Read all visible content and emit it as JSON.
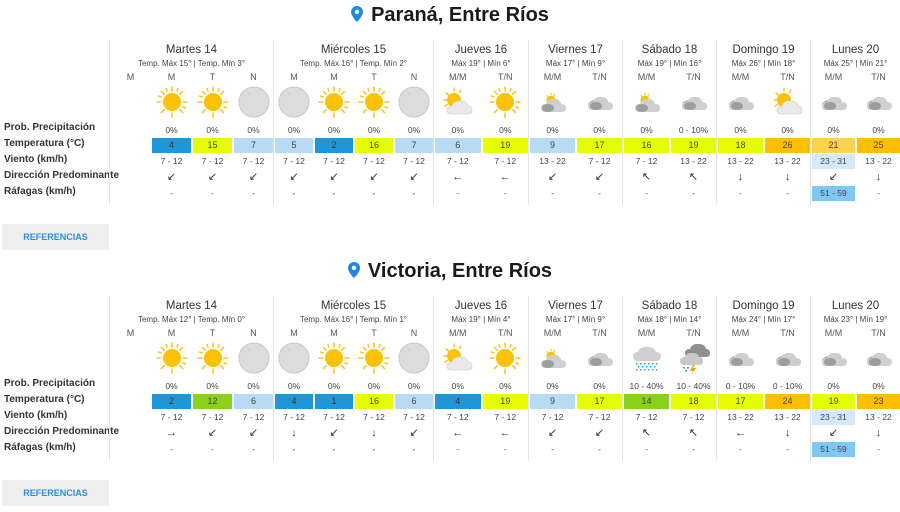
{
  "colors": {
    "pin": "#1e88e5",
    "temp_cold": "#1d97da",
    "temp_cool": "#b6dbf3",
    "temp_mild": "#e5ff00",
    "temp_green": "#8ad11b",
    "temp_warm": "#ffbe00",
    "temp_warm_light": "#ffd24d",
    "gust_bg": "#7fc8f5",
    "wind_high_bg": "#d6e9f8",
    "button_bg": "#efefef",
    "button_text": "#2a8fd6"
  },
  "labels": {
    "prob": "Prob. Precipitación",
    "temp": "Temperatura (°C)",
    "wind": "Viento (km/h)",
    "dir": "Dirección Predominante",
    "gust": "Ráfagas (km/h)"
  },
  "references_button": "REFERENCIAS",
  "cities": [
    {
      "title": "Paraná, Entre Ríos",
      "days": [
        {
          "name": "Martes 14",
          "sub": "Temp. Máx 15° | Temp. Mín 3°",
          "cols": [
            {
              "period": "M",
              "icon": "none",
              "prob": "",
              "temp": "",
              "wind": "",
              "dir": "",
              "gust": ""
            },
            {
              "period": "M",
              "icon": "sun",
              "prob": "0%",
              "temp": "4",
              "temp_color": "#1d97da",
              "wind": "7 - 12",
              "dir": "↙",
              "gust": "-"
            },
            {
              "period": "T",
              "icon": "sun",
              "prob": "0%",
              "temp": "15",
              "temp_color": "#e5ff00",
              "wind": "7 - 12",
              "dir": "↙",
              "gust": "-"
            },
            {
              "period": "N",
              "icon": "moon",
              "prob": "0%",
              "temp": "7",
              "temp_color": "#b6dbf3",
              "wind": "7 - 12",
              "dir": "↙",
              "gust": "-"
            }
          ]
        },
        {
          "name": "Miércoles 15",
          "sub": "Temp. Máx 16° | Temp. Mín 2°",
          "cols": [
            {
              "period": "M",
              "icon": "moon",
              "prob": "0%",
              "temp": "5",
              "temp_color": "#b6dbf3",
              "wind": "7 - 12",
              "dir": "↙",
              "gust": "-"
            },
            {
              "period": "M",
              "icon": "sun",
              "prob": "0%",
              "temp": "2",
              "temp_color": "#1d97da",
              "wind": "7 - 12",
              "dir": "↙",
              "gust": "-"
            },
            {
              "period": "T",
              "icon": "sun",
              "prob": "0%",
              "temp": "16",
              "temp_color": "#e5ff00",
              "wind": "7 - 12",
              "dir": "↙",
              "gust": "-"
            },
            {
              "period": "N",
              "icon": "moon",
              "prob": "0%",
              "temp": "7",
              "temp_color": "#b6dbf3",
              "wind": "7 - 12",
              "dir": "↙",
              "gust": "-"
            }
          ]
        },
        {
          "name": "Jueves 16",
          "sub": "Máx 19° | Mín 6°",
          "cols": [
            {
              "period": "M/M",
              "icon": "sun-cloud-light",
              "prob": "0%",
              "temp": "6",
              "temp_color": "#b6dbf3",
              "wind": "7 - 12",
              "dir": "←",
              "gust": "-"
            },
            {
              "period": "T/N",
              "icon": "sun",
              "prob": "0%",
              "temp": "19",
              "temp_color": "#e5ff00",
              "wind": "7 - 12",
              "dir": "←",
              "gust": "-"
            }
          ]
        },
        {
          "name": "Viernes 17",
          "sub": "Máx 17° | Mín 9°",
          "cols": [
            {
              "period": "M/M",
              "icon": "sun-cloud-dark",
              "prob": "0%",
              "temp": "9",
              "temp_color": "#b6dbf3",
              "wind": "13 - 22",
              "dir": "↙",
              "gust": "-"
            },
            {
              "period": "T/N",
              "icon": "cloud",
              "prob": "0%",
              "temp": "17",
              "temp_color": "#e5ff00",
              "wind": "7 - 12",
              "dir": "↙",
              "gust": "-"
            }
          ]
        },
        {
          "name": "Sábado 18",
          "sub": "Máx 19° | Mín 16°",
          "cols": [
            {
              "period": "M/M",
              "icon": "sun-cloud-dark",
              "prob": "0%",
              "temp": "16",
              "temp_color": "#e5ff00",
              "wind": "7 - 12",
              "dir": "↖",
              "gust": "-"
            },
            {
              "period": "T/N",
              "icon": "cloud",
              "prob": "0 - 10%",
              "temp": "19",
              "temp_color": "#e5ff00",
              "wind": "13 - 22",
              "dir": "↖",
              "gust": "-"
            }
          ]
        },
        {
          "name": "Domingo 19",
          "sub": "Máx 26° | Mín 18°",
          "cols": [
            {
              "period": "M/M",
              "icon": "cloud",
              "prob": "0%",
              "temp": "18",
              "temp_color": "#e5ff00",
              "wind": "13 - 22",
              "dir": "↓",
              "gust": "-"
            },
            {
              "period": "T/N",
              "icon": "sun-cloud-light",
              "prob": "0%",
              "temp": "26",
              "temp_color": "#ffbe00",
              "wind": "13 - 22",
              "dir": "↓",
              "gust": "-"
            }
          ]
        },
        {
          "name": "Lunes 20",
          "sub": "Máx 25° | Mín 21°",
          "cols": [
            {
              "period": "M/M",
              "icon": "cloud",
              "prob": "0%",
              "temp": "21",
              "temp_color": "#ffd24d",
              "wind": "23 - 31",
              "wind_bg": "#d6e9f8",
              "dir": "↙",
              "gust": "51 - 59",
              "gust_bg": "#7fc8f5"
            },
            {
              "period": "T/N",
              "icon": "cloud",
              "prob": "0%",
              "temp": "25",
              "temp_color": "#ffbe00",
              "wind": "13 - 22",
              "dir": "↓",
              "gust": "-"
            }
          ]
        }
      ]
    },
    {
      "title": "Victoria, Entre Ríos",
      "days": [
        {
          "name": "Martes 14",
          "sub": "Temp. Máx 12° | Temp. Mín 0°",
          "cols": [
            {
              "period": "M",
              "icon": "none",
              "prob": "",
              "temp": "",
              "wind": "",
              "dir": "",
              "gust": ""
            },
            {
              "period": "M",
              "icon": "sun",
              "prob": "0%",
              "temp": "2",
              "temp_color": "#1d97da",
              "wind": "7 - 12",
              "dir": "→",
              "gust": "-"
            },
            {
              "period": "T",
              "icon": "sun",
              "prob": "0%",
              "temp": "12",
              "temp_color": "#8ad11b",
              "wind": "7 - 12",
              "dir": "↙",
              "gust": "-"
            },
            {
              "period": "N",
              "icon": "moon",
              "prob": "0%",
              "temp": "6",
              "temp_color": "#b6dbf3",
              "wind": "7 - 12",
              "dir": "↙",
              "gust": "-"
            }
          ]
        },
        {
          "name": "Miércoles 15",
          "sub": "Temp. Máx 16° | Temp. Mín 1°",
          "cols": [
            {
              "period": "M",
              "icon": "moon",
              "prob": "0%",
              "temp": "4",
              "temp_color": "#1d97da",
              "wind": "7 - 12",
              "dir": "↓",
              "gust": "-"
            },
            {
              "period": "M",
              "icon": "sun",
              "prob": "0%",
              "temp": "1",
              "temp_color": "#1d97da",
              "wind": "7 - 12",
              "dir": "↙",
              "gust": "-"
            },
            {
              "period": "T",
              "icon": "sun",
              "prob": "0%",
              "temp": "16",
              "temp_color": "#e5ff00",
              "wind": "7 - 12",
              "dir": "↓",
              "gust": "-"
            },
            {
              "period": "N",
              "icon": "moon",
              "prob": "0%",
              "temp": "6",
              "temp_color": "#b6dbf3",
              "wind": "7 - 12",
              "dir": "↙",
              "gust": "-"
            }
          ]
        },
        {
          "name": "Jueves 16",
          "sub": "Máx 19° | Mín 4°",
          "cols": [
            {
              "period": "M/M",
              "icon": "sun-cloud-light",
              "prob": "0%",
              "temp": "4",
              "temp_color": "#1d97da",
              "wind": "7 - 12",
              "dir": "←",
              "gust": "-"
            },
            {
              "period": "T/N",
              "icon": "sun",
              "prob": "0%",
              "temp": "19",
              "temp_color": "#e5ff00",
              "wind": "7 - 12",
              "dir": "←",
              "gust": "-"
            }
          ]
        },
        {
          "name": "Viernes 17",
          "sub": "Máx 17° | Mín 9°",
          "cols": [
            {
              "period": "M/M",
              "icon": "sun-cloud-dark",
              "prob": "0%",
              "temp": "9",
              "temp_color": "#b6dbf3",
              "wind": "7 - 12",
              "dir": "↙",
              "gust": "-"
            },
            {
              "period": "T/N",
              "icon": "cloud",
              "prob": "0%",
              "temp": "17",
              "temp_color": "#e5ff00",
              "wind": "7 - 12",
              "dir": "↙",
              "gust": "-"
            }
          ]
        },
        {
          "name": "Sábado 18",
          "sub": "Máx 18° | Mín 14°",
          "cols": [
            {
              "period": "M/M",
              "icon": "rain",
              "prob": "10 - 40%",
              "temp": "14",
              "temp_color": "#8ad11b",
              "wind": "7 - 12",
              "dir": "↖",
              "gust": "-"
            },
            {
              "period": "T/N",
              "icon": "storm",
              "prob": "10 - 40%",
              "temp": "18",
              "temp_color": "#e5ff00",
              "wind": "7 - 12",
              "dir": "↖",
              "gust": "-"
            }
          ]
        },
        {
          "name": "Domingo 19",
          "sub": "Máx 24° | Mín 17°",
          "cols": [
            {
              "period": "M/M",
              "icon": "cloud",
              "prob": "0 - 10%",
              "temp": "17",
              "temp_color": "#e5ff00",
              "wind": "13 - 22",
              "dir": "←",
              "gust": "-"
            },
            {
              "period": "T/N",
              "icon": "cloud",
              "prob": "0 - 10%",
              "temp": "24",
              "temp_color": "#ffbe00",
              "wind": "13 - 22",
              "dir": "↓",
              "gust": "-"
            }
          ]
        },
        {
          "name": "Lunes 20",
          "sub": "Máx 23° | Mín 19°",
          "cols": [
            {
              "period": "M/M",
              "icon": "cloud",
              "prob": "0%",
              "temp": "19",
              "temp_color": "#e5ff00",
              "wind": "23 - 31",
              "wind_bg": "#d6e9f8",
              "dir": "↙",
              "gust": "51 - 59",
              "gust_bg": "#7fc8f5"
            },
            {
              "period": "T/N",
              "icon": "cloud",
              "prob": "0%",
              "temp": "23",
              "temp_color": "#ffbe00",
              "wind": "13 - 22",
              "dir": "↓",
              "gust": "-"
            }
          ]
        }
      ]
    }
  ]
}
